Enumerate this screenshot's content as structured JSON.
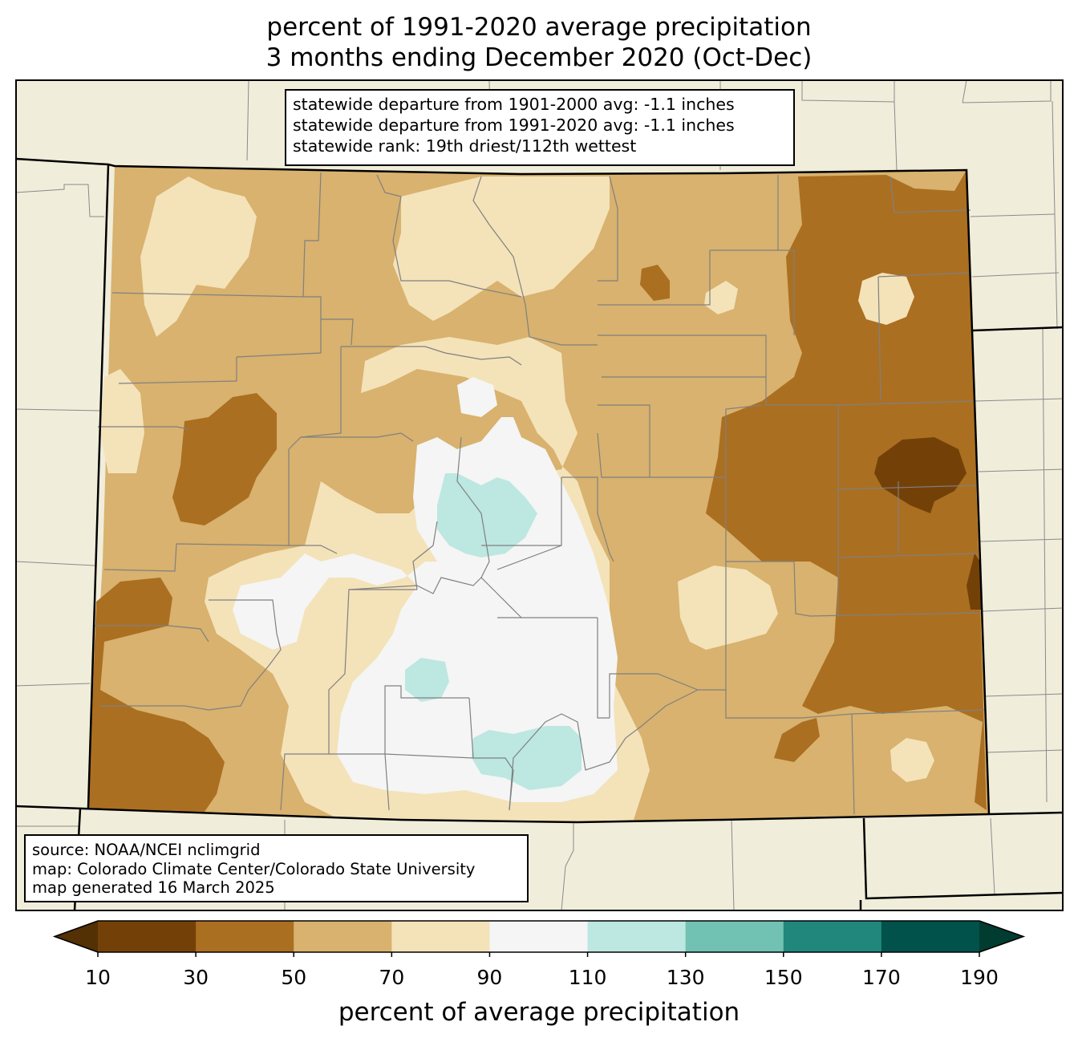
{
  "title": {
    "line1": "percent of 1991-2020 average precipitation",
    "line2": "3 months ending December 2020 (Oct-Dec)"
  },
  "stats_box": {
    "line1": "statewide departure from 1901-2000 avg: -1.1 inches",
    "line2": "statewide departure from 1991-2020 avg: -1.1 inches",
    "line3": "statewide rank: 19th driest/112th wettest"
  },
  "source_box": {
    "line1": "source: NOAA/NCEI nclimgrid",
    "line2": "map: Colorado Climate Center/Colorado State University",
    "line3": "map generated 16 March 2025"
  },
  "colorbar": {
    "label": "percent of average precipitation",
    "ticks": [
      "10",
      "30",
      "50",
      "70",
      "90",
      "110",
      "130",
      "150",
      "170",
      "190"
    ],
    "bins": [
      {
        "range": "10-30",
        "color": "#734108"
      },
      {
        "range": "30-50",
        "color": "#ab6f21"
      },
      {
        "range": "50-70",
        "color": "#d8b26e"
      },
      {
        "range": "70-90",
        "color": "#f4e2b9"
      },
      {
        "range": "90-110",
        "color": "#f4f5f4"
      },
      {
        "range": "110-130",
        "color": "#bde7e1"
      },
      {
        "range": "130-150",
        "color": "#72c2b3"
      },
      {
        "range": "150-170",
        "color": "#21877d"
      },
      {
        "range": "170-190",
        "color": "#01524a"
      }
    ],
    "under_color": "#543005",
    "over_color": "#003c30"
  },
  "map_colors": {
    "outside": "#f0eddb",
    "border": "#000000",
    "county_lines": "#808080"
  }
}
